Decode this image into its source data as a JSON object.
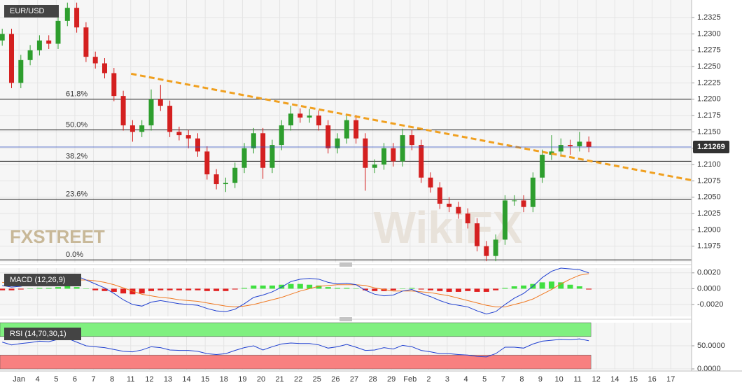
{
  "chart_data": {
    "type": "candlestick",
    "symbol": "EUR/USD",
    "logo": "FXSTREET",
    "watermark": "WikiFX",
    "categories": [
      "Jan",
      "4",
      "5",
      "6",
      "7",
      "8",
      "11",
      "12",
      "13",
      "14",
      "15",
      "18",
      "19",
      "20",
      "21",
      "22",
      "25",
      "26",
      "27",
      "28",
      "29",
      "Feb",
      "2",
      "3",
      "4",
      "5",
      "7",
      "8",
      "9",
      "10",
      "11",
      "12",
      "14",
      "15",
      "16",
      "17"
    ],
    "xlim": [
      -1.02,
      36.12
    ],
    "x": [
      -0.9,
      -0.4,
      0.1,
      0.6,
      1.1,
      1.6,
      2.1,
      2.6,
      3.1,
      3.6,
      4.1,
      4.6,
      5.1,
      5.6,
      6.1,
      6.6,
      7.1,
      7.6,
      8.1,
      8.6,
      9.1,
      9.6,
      10.1,
      10.6,
      11.1,
      11.6,
      12.1,
      12.6,
      13.1,
      13.6,
      14.1,
      14.6,
      15.1,
      15.6,
      16.1,
      16.6,
      17.1,
      17.6,
      18.1,
      18.6,
      19.1,
      19.6,
      20.1,
      20.6,
      21.1,
      21.6,
      22.1,
      22.6,
      23.1,
      23.6,
      24.1,
      24.6,
      25.1,
      25.6,
      26.1,
      26.6,
      27.1,
      27.6,
      28.1,
      28.6,
      29.1,
      29.6,
      30.1,
      30.6
    ],
    "candles": [
      [
        1.229,
        1.2308,
        1.2282,
        1.23
      ],
      [
        1.23,
        1.2308,
        1.2217,
        1.2225
      ],
      [
        1.2225,
        1.2268,
        1.2217,
        1.226
      ],
      [
        1.226,
        1.2283,
        1.2252,
        1.2275
      ],
      [
        1.2275,
        1.2298,
        1.2267,
        1.229
      ],
      [
        1.229,
        1.2298,
        1.2277,
        1.2285
      ],
      [
        1.2285,
        1.2328,
        1.2277,
        1.232
      ],
      [
        1.232,
        1.2348,
        1.2312,
        1.234
      ],
      [
        1.234,
        1.2348,
        1.2302,
        1.231
      ],
      [
        1.231,
        1.2318,
        1.2257,
        1.2265
      ],
      [
        1.2265,
        1.2273,
        1.2247,
        1.2255
      ],
      [
        1.2255,
        1.2263,
        1.2232,
        1.224
      ],
      [
        1.224,
        1.2248,
        1.2197,
        1.2205
      ],
      [
        1.2205,
        1.2213,
        1.2152,
        1.216
      ],
      [
        1.216,
        1.2168,
        1.2135,
        1.215
      ],
      [
        1.215,
        1.2168,
        1.2142,
        1.216
      ],
      [
        1.216,
        1.2215,
        1.2152,
        1.22
      ],
      [
        1.22,
        1.2222,
        1.2182,
        1.219
      ],
      [
        1.219,
        1.2198,
        1.2142,
        1.215
      ],
      [
        1.215,
        1.2158,
        1.2137,
        1.2145
      ],
      [
        1.2145,
        1.2153,
        1.2125,
        1.214
      ],
      [
        1.214,
        1.2148,
        1.2112,
        1.212
      ],
      [
        1.212,
        1.2128,
        1.2077,
        1.2085
      ],
      [
        1.2085,
        1.2093,
        1.2062,
        1.207
      ],
      [
        1.207,
        1.208,
        1.2058,
        1.2072
      ],
      [
        1.2072,
        1.2103,
        1.2064,
        1.2095
      ],
      [
        1.2095,
        1.2133,
        1.2087,
        1.2125
      ],
      [
        1.2125,
        1.2156,
        1.2117,
        1.2148
      ],
      [
        1.2148,
        1.2156,
        1.2078,
        1.2095
      ],
      [
        1.2095,
        1.2138,
        1.2087,
        1.213
      ],
      [
        1.213,
        1.2168,
        1.2122,
        1.216
      ],
      [
        1.216,
        1.219,
        1.2152,
        1.2178
      ],
      [
        1.2178,
        1.2186,
        1.2164,
        1.2172
      ],
      [
        1.2172,
        1.2185,
        1.2164,
        1.2175
      ],
      [
        1.2175,
        1.2183,
        1.2152,
        1.216
      ],
      [
        1.216,
        1.2168,
        1.2117,
        1.2125
      ],
      [
        1.2125,
        1.2148,
        1.2117,
        1.214
      ],
      [
        1.214,
        1.2176,
        1.2132,
        1.2168
      ],
      [
        1.2168,
        1.2176,
        1.2132,
        1.214
      ],
      [
        1.214,
        1.2148,
        1.206,
        1.2095
      ],
      [
        1.2095,
        1.2108,
        1.2087,
        1.21
      ],
      [
        1.21,
        1.2133,
        1.2092,
        1.2125
      ],
      [
        1.2125,
        1.2133,
        1.2097,
        1.2105
      ],
      [
        1.2105,
        1.2155,
        1.2097,
        1.2145
      ],
      [
        1.2145,
        1.2153,
        1.2122,
        1.213
      ],
      [
        1.213,
        1.2138,
        1.2072,
        1.208
      ],
      [
        1.208,
        1.2088,
        1.2057,
        1.2065
      ],
      [
        1.2065,
        1.2073,
        1.2032,
        1.204
      ],
      [
        1.204,
        1.205,
        1.2027,
        1.2035
      ],
      [
        1.2035,
        1.2043,
        1.2017,
        1.2025
      ],
      [
        1.2025,
        1.2033,
        1.2002,
        1.201
      ],
      [
        1.201,
        1.2018,
        1.1967,
        1.1975
      ],
      [
        1.1975,
        1.1983,
        1.1952,
        1.196
      ],
      [
        1.196,
        1.1993,
        1.1952,
        1.1985
      ],
      [
        1.1985,
        1.2053,
        1.1977,
        1.2045
      ],
      [
        1.2045,
        1.2053,
        1.2037,
        1.2045
      ],
      [
        1.2045,
        1.2053,
        1.2027,
        1.2035
      ],
      [
        1.2035,
        1.2088,
        1.2027,
        1.208
      ],
      [
        1.208,
        1.2123,
        1.2072,
        1.2115
      ],
      [
        1.2115,
        1.2145,
        1.2107,
        1.212
      ],
      [
        1.212,
        1.214,
        1.2112,
        1.213
      ],
      [
        1.213,
        1.2138,
        1.2115,
        1.2128
      ],
      [
        1.2128,
        1.215,
        1.212,
        1.2135
      ],
      [
        1.2135,
        1.2143,
        1.2119,
        1.2127
      ]
    ],
    "up_color": "#2e9e2e",
    "down_color": "#d42020",
    "ylim": [
      1.195,
      1.2352
    ],
    "yticks": [
      {
        "value": 1.1975,
        "label": "1.1975"
      },
      {
        "value": 1.2,
        "label": "1.2000"
      },
      {
        "value": 1.2025,
        "label": "1.2025"
      },
      {
        "value": 1.205,
        "label": "1.2050"
      },
      {
        "value": 1.2075,
        "label": "1.2075"
      },
      {
        "value": 1.21,
        "label": "1.2100"
      },
      {
        "value": 1.2125,
        "label": "1.2125"
      },
      {
        "value": 1.215,
        "label": "1.2150"
      },
      {
        "value": 1.2175,
        "label": "1.2175"
      },
      {
        "value": 1.22,
        "label": "1.2200"
      },
      {
        "value": 1.2225,
        "label": "1.2225"
      },
      {
        "value": 1.225,
        "label": "1.2250"
      },
      {
        "value": 1.2275,
        "label": "1.2275"
      },
      {
        "value": 1.23,
        "label": "1.2300"
      },
      {
        "value": 1.2325,
        "label": "1.2325"
      }
    ],
    "grid": true,
    "last_price": 1.21269,
    "fib_levels": [
      {
        "label": "61.8%",
        "value": 1.22
      },
      {
        "label": "50.0%",
        "value": 1.2153
      },
      {
        "label": "38.2%",
        "value": 1.2105
      },
      {
        "label": "23.6%",
        "value": 1.2047
      },
      {
        "label": "0.0%",
        "value": 1.1954
      }
    ],
    "trendline": {
      "x": [
        6.02,
        36.12
      ],
      "y": [
        1.2239,
        1.2076
      ],
      "color": "#f0a020"
    },
    "macd": {
      "label": "MACD (12,26,9)",
      "ylim": [
        -0.0035,
        0.0026
      ],
      "yticks": [
        {
          "value": -0.002,
          "label": "-0.0020"
        },
        {
          "value": 0,
          "label": "0.0000"
        },
        {
          "value": 0.002,
          "label": "0.0020"
        }
      ],
      "macd_color": "#2040d0",
      "signal_color": "#f07820",
      "hist_up_color": "#40e040",
      "hist_down_color": "#e02020",
      "macd": [
        0.0004,
        0.0002,
        0.0003,
        0.0006,
        0.0009,
        0.001,
        0.0014,
        0.0017,
        0.0016,
        0.0011,
        0.0006,
        0.0001,
        -0.0006,
        -0.0014,
        -0.002,
        -0.0022,
        -0.0017,
        -0.0015,
        -0.0017,
        -0.0019,
        -0.002,
        -0.0021,
        -0.0025,
        -0.0028,
        -0.0029,
        -0.0026,
        -0.0019,
        -0.0011,
        -0.0008,
        -0.0004,
        0.0002,
        0.0009,
        0.0012,
        0.0013,
        0.0012,
        0.0008,
        0.0006,
        0.0007,
        0.0005,
        -0.0002,
        -0.0007,
        -0.0009,
        -0.0008,
        -0.0003,
        -0.0001,
        -0.0006,
        -0.001,
        -0.0015,
        -0.0019,
        -0.0021,
        -0.0023,
        -0.0028,
        -0.0032,
        -0.0029,
        -0.002,
        -0.0012,
        -0.0006,
        0.0003,
        0.0014,
        0.0022,
        0.0026,
        0.0025,
        0.0024,
        0.002
      ],
      "signal": [
        0.0008,
        0.0007,
        0.0006,
        0.0006,
        0.0006,
        0.0007,
        0.0008,
        0.001,
        0.0011,
        0.0011,
        0.001,
        0.0008,
        0.0005,
        0.0001,
        -0.0003,
        -0.0007,
        -0.0009,
        -0.0011,
        -0.0012,
        -0.0014,
        -0.0015,
        -0.0016,
        -0.0018,
        -0.002,
        -0.0022,
        -0.0023,
        -0.0022,
        -0.002,
        -0.0017,
        -0.0014,
        -0.0011,
        -0.0007,
        -0.0003,
        0.0,
        0.0003,
        0.0004,
        0.0005,
        0.0005,
        0.0005,
        0.0004,
        0.0001,
        -0.0001,
        -0.0003,
        -0.0003,
        -0.0003,
        -0.0004,
        -0.0005,
        -0.0007,
        -0.0009,
        -0.0012,
        -0.0015,
        -0.0018,
        -0.0021,
        -0.0023,
        -0.0023,
        -0.002,
        -0.0017,
        -0.0013,
        -0.0007,
        -0.0001,
        0.0006,
        0.0012,
        0.0017,
        0.0019
      ],
      "histogram": [
        -0.0002,
        -0.0002,
        -0.0001,
        0,
        0.0001,
        0.0001,
        0.0002,
        0.0003,
        0.0002,
        0,
        -0.0002,
        -0.0003,
        -0.0004,
        -0.0006,
        -0.0007,
        -0.0006,
        -0.0003,
        -0.0002,
        -0.0002,
        -0.0002,
        -0.0002,
        -0.0002,
        -0.0003,
        -0.0003,
        -0.0003,
        -0.0001,
        0.0001,
        0.0004,
        0.0004,
        0.0004,
        0.0005,
        0.0006,
        0.0006,
        0.0005,
        0.0004,
        0.0002,
        0.0001,
        0.0001,
        0,
        -0.0002,
        -0.0003,
        -0.0003,
        -0.0002,
        0,
        0.0001,
        -0.0001,
        -0.0002,
        -0.0003,
        -0.0004,
        -0.0004,
        -0.0003,
        -0.0004,
        -0.0004,
        -0.0002,
        0.0001,
        0.0003,
        0.0004,
        0.0006,
        0.0008,
        0.0009,
        0.0008,
        0.0005,
        0.0003,
        -0.0001
      ]
    },
    "rsi": {
      "label": "RSI (14,70,30,1)",
      "ylim": [
        -1.5,
        100
      ],
      "yticks": [
        {
          "value": 0,
          "label": "0.0000"
        },
        {
          "value": 50,
          "label": "50.0000"
        }
      ],
      "color": "#2040d0",
      "bands": [
        {
          "from": 70,
          "to": 100,
          "color": "#80f080"
        },
        {
          "from": 0,
          "to": 30,
          "color": "#f88080"
        }
      ],
      "values": [
        58,
        52,
        55,
        57,
        60,
        59,
        64,
        66,
        58,
        50,
        48,
        46,
        42,
        38,
        37,
        41,
        48,
        46,
        41,
        40,
        40,
        38,
        33,
        31,
        33,
        40,
        46,
        50,
        41,
        48,
        54,
        56,
        55,
        55,
        52,
        45,
        48,
        53,
        47,
        40,
        41,
        46,
        43,
        51,
        48,
        40,
        37,
        33,
        33,
        31,
        30,
        27,
        26,
        33,
        47,
        47,
        45,
        54,
        60,
        62,
        64,
        63,
        65,
        61
      ]
    }
  }
}
